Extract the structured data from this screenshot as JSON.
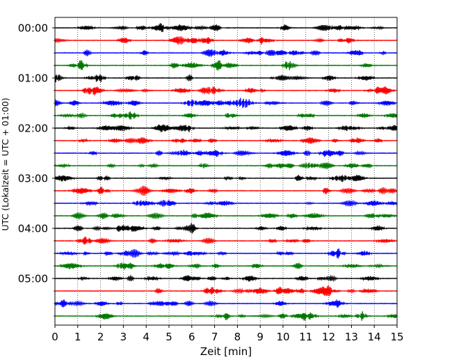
{
  "chart_data": {
    "type": "line",
    "title": "",
    "xlabel": "Zeit  [min]",
    "ylabel": "UTC (Lokalzeit = UTC + 01:00)",
    "xlim": [
      0,
      15
    ],
    "x_ticks": [
      0,
      1,
      2,
      3,
      4,
      5,
      6,
      7,
      8,
      9,
      10,
      11,
      12,
      13,
      14,
      15
    ],
    "x_tick_labels": [
      "0",
      "1",
      "2",
      "3",
      "4",
      "5",
      "6",
      "7",
      "8",
      "9",
      "10",
      "11",
      "12",
      "13",
      "14",
      "15"
    ],
    "y_tick_labels": [
      "00:00",
      "01:00",
      "02:00",
      "03:00",
      "04:00",
      "05:00"
    ],
    "traces_per_hour": 4,
    "trace_count": 24,
    "minutes_per_trace": 15,
    "grid": "vertical dotted at each minute",
    "legend": "none",
    "trace_colors": [
      "#000000",
      "#ff0000",
      "#0000ff",
      "#007700"
    ],
    "notes": "Helicorder-style seismogram: each row shows 15 minutes of ground motion, rows step 15 minutes apart starting at 00:00 UTC; waveform amplitudes are not labeled."
  }
}
